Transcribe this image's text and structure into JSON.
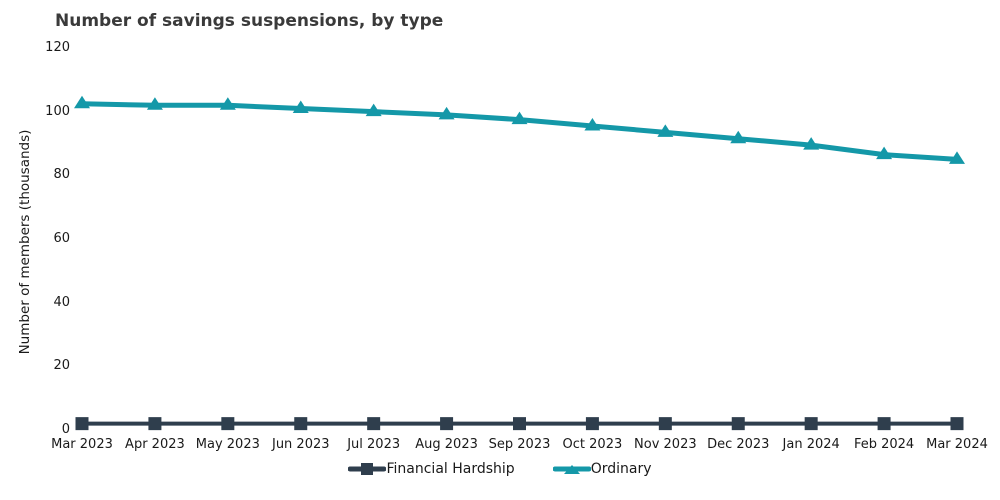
{
  "chart_data": {
    "type": "line",
    "title": "Number of savings suspensions, by type",
    "xlabel": "",
    "ylabel": "Number of members (thousands)",
    "ylim": [
      0,
      120
    ],
    "yticks": [
      0,
      20,
      40,
      60,
      80,
      100,
      120
    ],
    "grid": false,
    "axis_lines": false,
    "legend_position": "bottom-center",
    "categories": [
      "Mar 2023",
      "Apr 2023",
      "May 2023",
      "Jun 2023",
      "Jul 2023",
      "Aug 2023",
      "Sep 2023",
      "Oct 2023",
      "Nov 2023",
      "Dec 2023",
      "Jan 2024",
      "Feb 2024",
      "Mar 2024"
    ],
    "series": [
      {
        "name": "Financial Hardship",
        "color": "#2F3E4D",
        "marker": "square",
        "line_width": 4,
        "values": [
          2,
          2,
          2,
          2,
          2,
          2,
          2,
          2,
          2,
          2,
          2,
          2,
          2
        ]
      },
      {
        "name": "Ordinary",
        "color": "#1498A8",
        "marker": "triangle-up",
        "line_width": 5,
        "values": [
          102.5,
          102,
          102,
          101,
          100,
          99,
          97.5,
          95.5,
          93.5,
          91.5,
          89.5,
          86.5,
          85
        ]
      }
    ]
  }
}
